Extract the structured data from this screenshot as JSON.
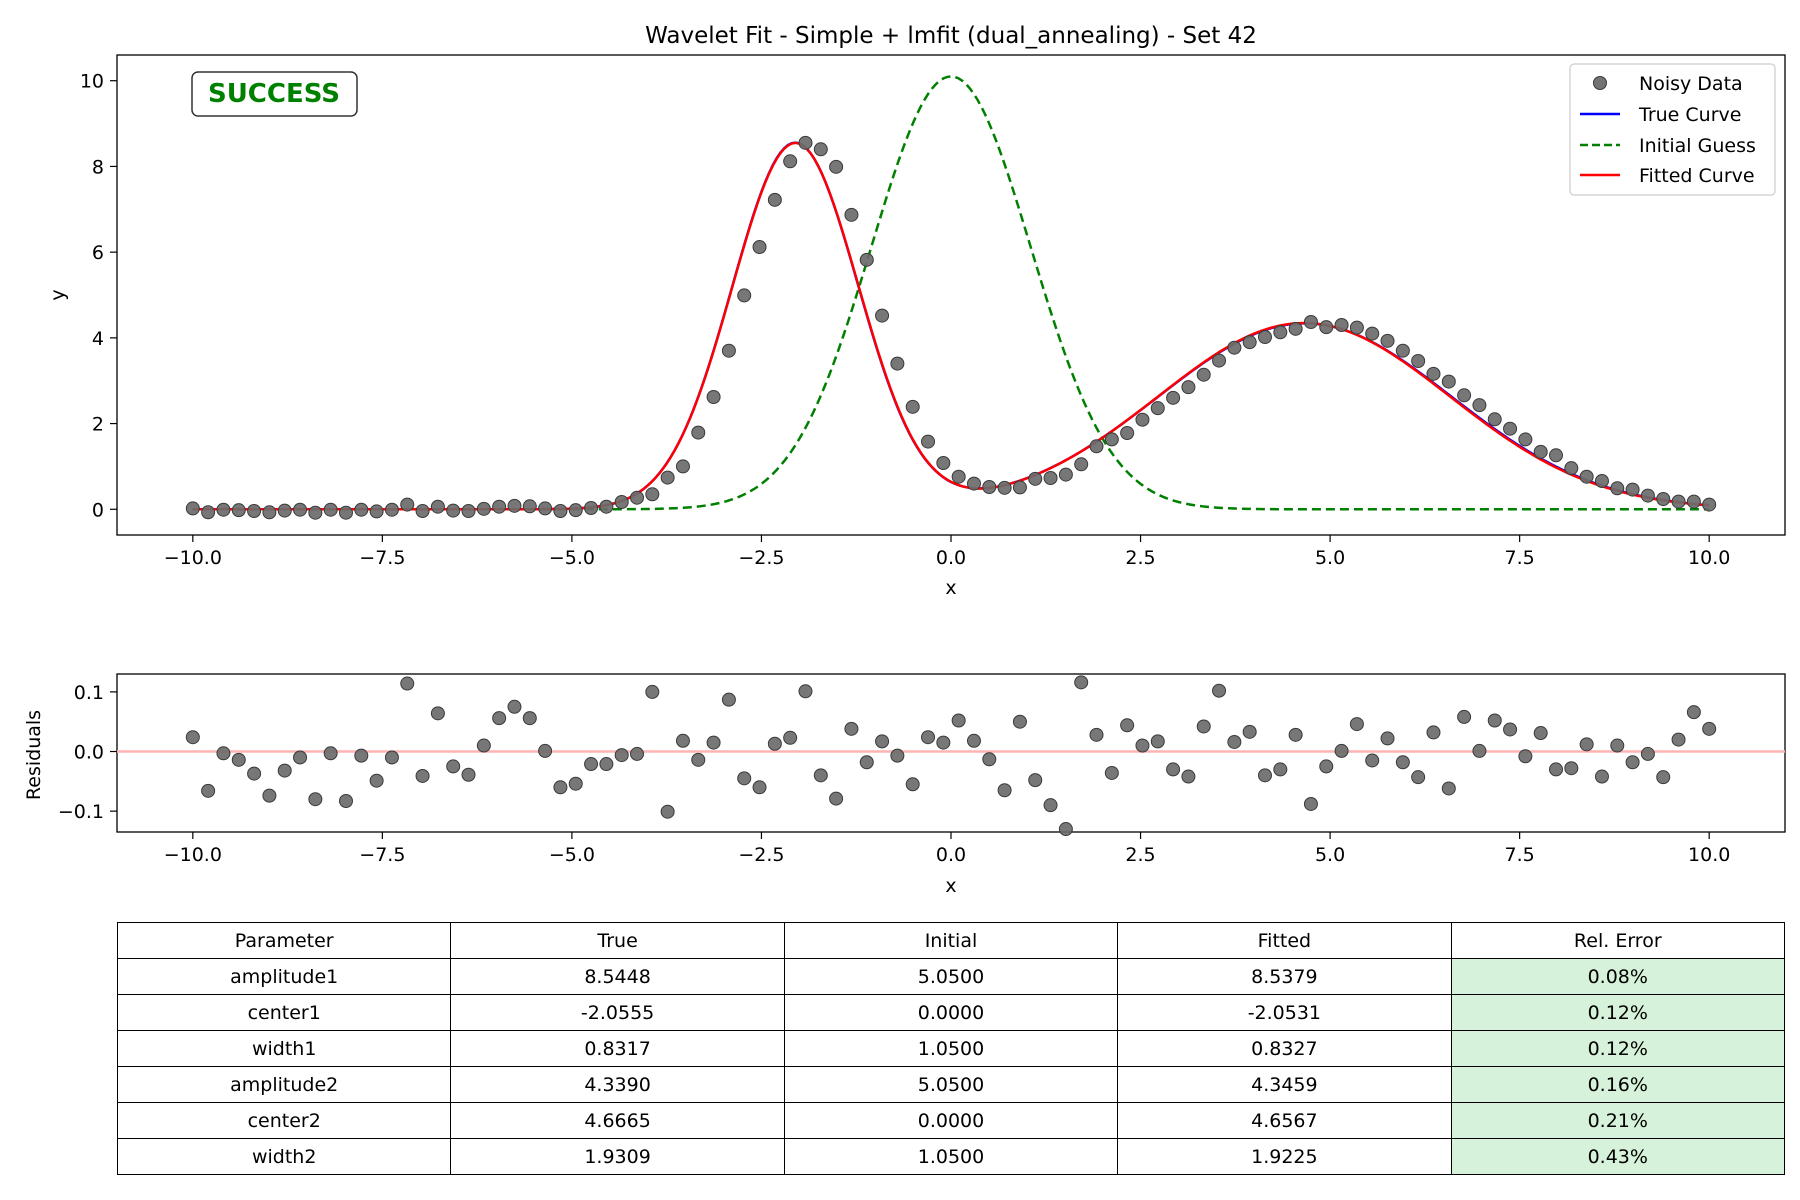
{
  "figure_title": "Wavelet Fit - Simple + lmfit (dual_annealing) - Set 42",
  "status_badge": "SUCCESS",
  "colors": {
    "noisy_data": "#6b6b6b",
    "true_curve": "#0000ff",
    "initial_guess": "#008000",
    "fitted_curve": "#ff0000",
    "success_text": "#008000",
    "zero_line": "#ffb3b3",
    "good_cell": "#d7f2da"
  },
  "chart_data": [
    {
      "type": "line",
      "title": "Wavelet Fit - Simple + lmfit (dual_annealing) - Set 42",
      "xlabel": "x",
      "ylabel": "y",
      "xlim": [
        -11,
        11
      ],
      "ylim": [
        -0.6,
        10.6
      ],
      "x_ticks": [
        "−10.0",
        "−7.5",
        "−5.0",
        "−2.5",
        "0.0",
        "2.5",
        "5.0",
        "7.5",
        "10.0"
      ],
      "x_tick_values": [
        -10,
        -7.5,
        -5,
        -2.5,
        0,
        2.5,
        5,
        7.5,
        10
      ],
      "y_ticks": [
        "0",
        "2",
        "4",
        "6",
        "8",
        "10"
      ],
      "y_tick_values": [
        0,
        2,
        4,
        6,
        8,
        10
      ],
      "grid": false,
      "legend_position": "top-right",
      "x_range": [
        -10,
        10
      ],
      "n_points": 100,
      "series": [
        {
          "name": "Noisy Data",
          "kind": "scatter",
          "values": [
            0.02,
            -0.07,
            -0.01,
            -0.02,
            -0.04,
            -0.07,
            -0.03,
            -0.01,
            -0.08,
            -0.01,
            -0.08,
            -0.01,
            -0.05,
            -0.01,
            0.11,
            -0.04,
            0.06,
            -0.03,
            -0.04,
            0.01,
            0.06,
            0.08,
            0.07,
            0.02,
            -0.04,
            -0.02,
            0.03,
            0.06,
            0.17,
            0.27,
            0.35,
            0.74,
            1.0,
            1.79,
            2.62,
            3.7,
            4.99,
            6.12,
            7.22,
            8.12,
            8.55,
            8.4,
            7.99,
            6.87,
            5.82,
            4.52,
            3.4,
            2.39,
            1.58,
            1.08,
            0.76,
            0.6,
            0.52,
            0.5,
            0.51,
            0.71,
            0.73,
            0.81,
            1.05,
            1.47,
            1.63,
            1.78,
            2.09,
            2.36,
            2.6,
            2.85,
            3.14,
            3.47,
            3.77,
            3.9,
            4.02,
            4.13,
            4.21,
            4.37,
            4.25,
            4.3,
            4.24,
            4.1,
            3.93,
            3.7,
            3.46,
            3.16,
            2.98,
            2.66,
            2.43,
            2.1,
            1.88,
            1.63,
            1.34,
            1.26,
            0.96,
            0.76,
            0.66,
            0.49,
            0.46,
            0.32,
            0.24,
            0.18,
            0.18,
            0.11
          ]
        },
        {
          "name": "True Curve",
          "kind": "line",
          "model": {
            "amplitude1": 8.5448,
            "center1": -2.0555,
            "width1": 0.8317,
            "amplitude2": 4.339,
            "center2": 4.6665,
            "width2": 1.9309
          }
        },
        {
          "name": "Initial Guess",
          "kind": "dashed-line",
          "model": {
            "amplitude1": 5.05,
            "center1": 0.0,
            "width1": 1.05,
            "amplitude2": 5.05,
            "center2": 0.0,
            "width2": 1.05
          }
        },
        {
          "name": "Fitted Curve",
          "kind": "line",
          "model": {
            "amplitude1": 8.5379,
            "center1": -2.0531,
            "width1": 0.8327,
            "amplitude2": 4.3459,
            "center2": 4.6567,
            "width2": 1.9225
          }
        }
      ]
    },
    {
      "type": "scatter",
      "xlabel": "x",
      "ylabel": "Residuals",
      "xlim": [
        -11,
        11
      ],
      "ylim": [
        -0.135,
        0.13
      ],
      "x_ticks": [
        "−10.0",
        "−7.5",
        "−5.0",
        "−2.5",
        "0.0",
        "2.5",
        "5.0",
        "7.5",
        "10.0"
      ],
      "x_tick_values": [
        -10,
        -7.5,
        -5,
        -2.5,
        0,
        2.5,
        5,
        7.5,
        10
      ],
      "y_ticks": [
        "−0.1",
        "0.0",
        "0.1"
      ],
      "y_tick_values": [
        -0.1,
        0.0,
        0.1
      ],
      "grid": false,
      "zero_line": 0,
      "x_range": [
        -10,
        10
      ],
      "series": [
        {
          "values": [
            0.024,
            -0.066,
            -0.003,
            -0.014,
            -0.037,
            -0.074,
            -0.032,
            -0.01,
            -0.08,
            -0.003,
            -0.083,
            -0.007,
            -0.049,
            -0.01,
            0.114,
            -0.041,
            0.064,
            -0.025,
            -0.039,
            0.01,
            0.056,
            0.075,
            0.056,
            0.001,
            -0.06,
            -0.054,
            -0.021,
            -0.021,
            -0.006,
            -0.004,
            0.1,
            -0.101,
            0.018,
            -0.014,
            0.015,
            0.087,
            -0.045,
            -0.06,
            0.013,
            0.023,
            0.101,
            -0.04,
            -0.079,
            0.038,
            -0.018,
            0.017,
            -0.007,
            -0.055,
            0.024,
            0.015,
            0.052,
            0.018,
            -0.013,
            -0.065,
            0.05,
            -0.048,
            -0.09,
            -0.13,
            0.116,
            0.028,
            -0.036,
            0.044,
            0.01,
            0.017,
            -0.03,
            -0.042,
            0.042,
            0.102,
            0.016,
            0.033,
            -0.04,
            -0.03,
            0.028,
            -0.088,
            -0.025,
            0.001,
            0.046,
            -0.015,
            0.022,
            -0.018,
            -0.043,
            0.032,
            -0.062,
            0.058,
            0.001,
            0.052,
            0.037,
            -0.008,
            0.031,
            -0.03,
            -0.028,
            0.012,
            -0.042,
            0.01,
            -0.018,
            -0.004,
            -0.043,
            0.02,
            0.066,
            0.038
          ]
        }
      ]
    }
  ],
  "table": {
    "headers": [
      "Parameter",
      "True",
      "Initial",
      "Fitted",
      "Rel. Error"
    ],
    "rows": [
      [
        "amplitude1",
        "8.5448",
        "5.0500",
        "8.5379",
        "0.08%"
      ],
      [
        "center1",
        "-2.0555",
        "0.0000",
        "-2.0531",
        "0.12%"
      ],
      [
        "width1",
        "0.8317",
        "1.0500",
        "0.8327",
        "0.12%"
      ],
      [
        "amplitude2",
        "4.3390",
        "5.0500",
        "4.3459",
        "0.16%"
      ],
      [
        "center2",
        "4.6665",
        "0.0000",
        "4.6567",
        "0.21%"
      ],
      [
        "width2",
        "1.9309",
        "1.0500",
        "1.9225",
        "0.43%"
      ]
    ]
  }
}
